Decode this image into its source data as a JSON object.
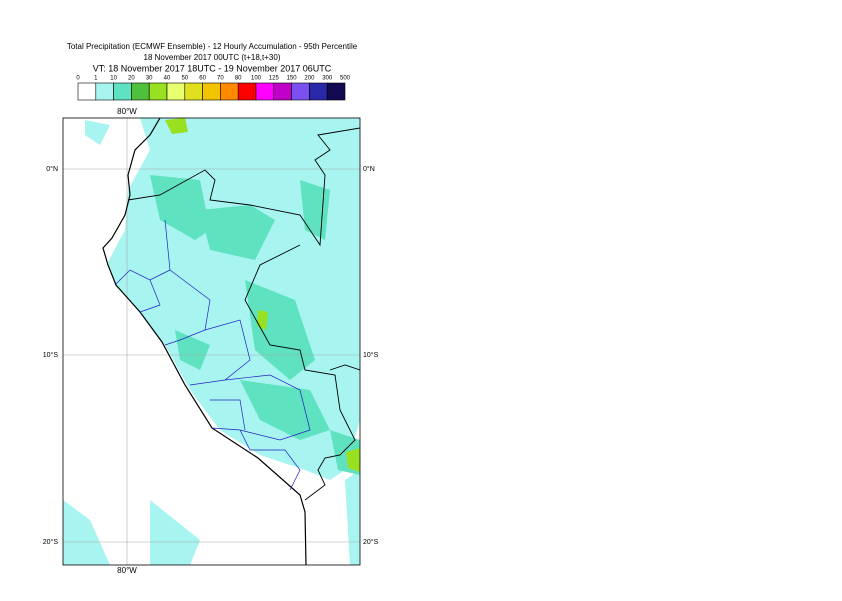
{
  "title": {
    "line1": "Total Precipitation (ECMWF Ensemble) - 12 Hourly Accumulation - 95th Percentile",
    "line2": "18 November 2017 00UTC (t+18,t+30)",
    "line3": "VT: 18 November 2017 18UTC - 19 November 2017 06UTC"
  },
  "legend": {
    "labels": [
      "0",
      "1",
      "10",
      "20",
      "30",
      "40",
      "50",
      "60",
      "70",
      "80",
      "100",
      "125",
      "150",
      "200",
      "300",
      "500"
    ],
    "colors": [
      "#ffffff",
      "#a8f4f0",
      "#5ee2c0",
      "#4fc03c",
      "#98e020",
      "#e8ff70",
      "#e0e020",
      "#f2c400",
      "#ff8a00",
      "#ff0000",
      "#ff00ff",
      "#c000c8",
      "#7a50f0",
      "#2828a8",
      "#120a50"
    ]
  },
  "map": {
    "lon_label_top": "80°W",
    "lon_label_bottom": "80°W",
    "lat_labels_left": [
      "0°N",
      "10°S",
      "20°S"
    ],
    "lat_labels_right": [
      "0°N",
      "10°S",
      "20°S"
    ]
  }
}
